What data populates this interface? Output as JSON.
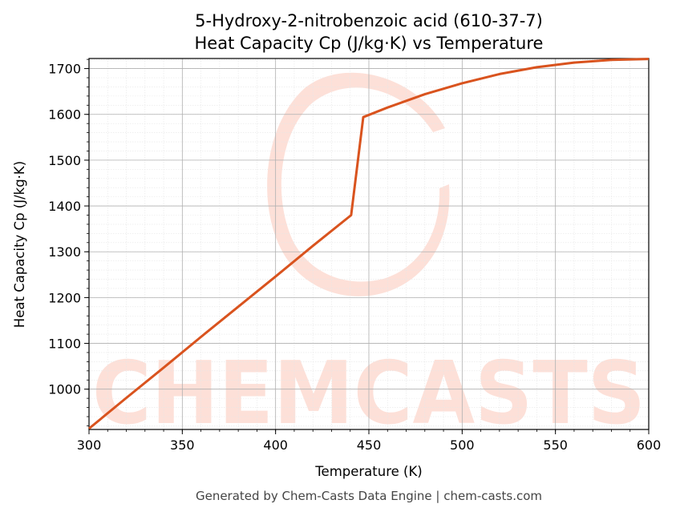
{
  "chart_data": {
    "type": "line",
    "title_line1": "5-Hydroxy-2-nitrobenzoic acid (610-37-7)",
    "title_line2": "Heat Capacity Cp (J/kg·K) vs Temperature",
    "xlabel": "Temperature (K)",
    "ylabel": "Heat Capacity Cp (J/kg·K)",
    "xlim": [
      300,
      600
    ],
    "ylim": [
      912,
      1722
    ],
    "x_ticks": [
      300,
      350,
      400,
      450,
      500,
      550,
      600
    ],
    "y_ticks": [
      1000,
      1100,
      1200,
      1300,
      1400,
      1500,
      1600,
      1700
    ],
    "grid": true,
    "line_color": "#d9531e",
    "series": [
      {
        "x": [
          300,
          320,
          340,
          360,
          380,
          400,
          420,
          440.5,
          447,
          460,
          480,
          500,
          520,
          540,
          560,
          580,
          600
        ],
        "values": [
          914,
          981,
          1047,
          1114,
          1180,
          1246,
          1313,
          1380,
          1594,
          1615,
          1644,
          1668,
          1688,
          1703,
          1713,
          1719,
          1721
        ]
      }
    ]
  },
  "watermark": "CHEMCASTS",
  "footer": "Generated by Chem-Casts Data Engine | chem-casts.com"
}
